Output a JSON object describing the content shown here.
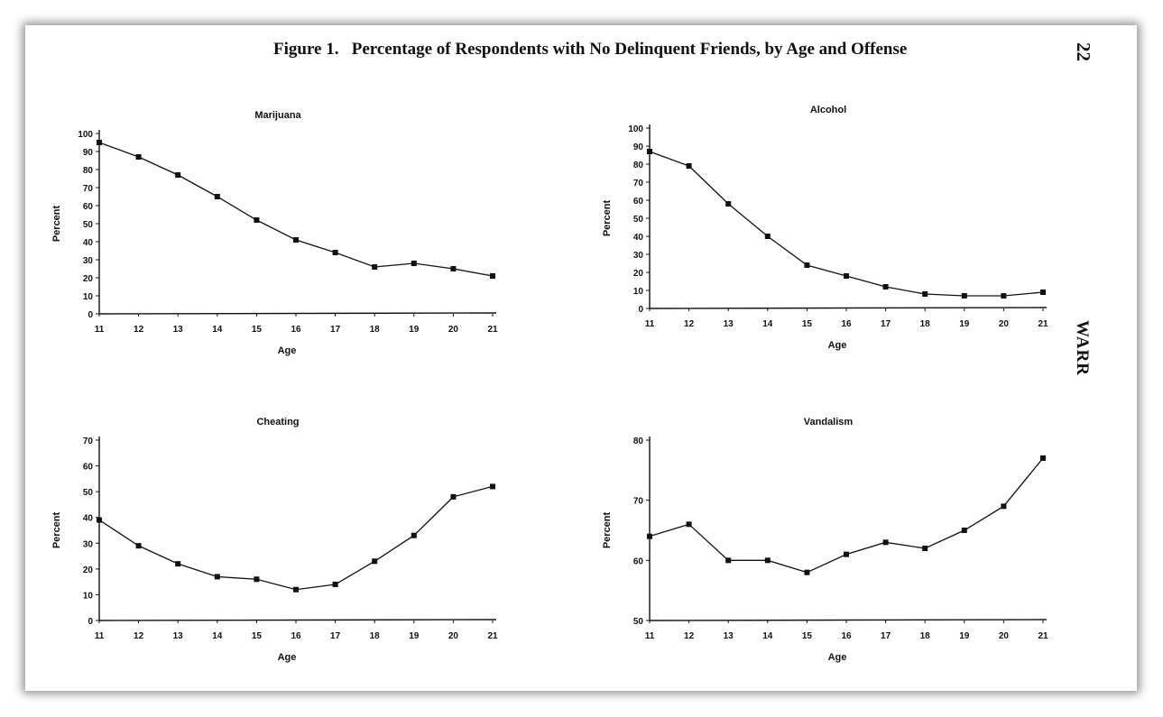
{
  "page": {
    "figure_label": "Figure 1.",
    "figure_title": "Percentage of Respondents with No Delinquent Friends, by Age and Offense",
    "page_number": "22",
    "running_head": "WARR"
  },
  "chart_data": [
    {
      "type": "line",
      "title": "Marijuana",
      "xlabel": "Age",
      "ylabel": "Percent",
      "x": [
        11,
        12,
        13,
        14,
        15,
        16,
        17,
        18,
        19,
        20,
        21
      ],
      "values": [
        95,
        87,
        77,
        65,
        52,
        41,
        34,
        26,
        28,
        25,
        21
      ],
      "ylim": [
        0,
        100
      ],
      "yticks": [
        0,
        10,
        20,
        30,
        40,
        50,
        60,
        70,
        80,
        90,
        100
      ]
    },
    {
      "type": "line",
      "title": "Alcohol",
      "xlabel": "Age",
      "ylabel": "Percent",
      "x": [
        11,
        12,
        13,
        14,
        15,
        16,
        17,
        18,
        19,
        20,
        21
      ],
      "values": [
        87,
        79,
        58,
        40,
        24,
        18,
        12,
        8,
        7,
        7,
        9
      ],
      "ylim": [
        0,
        100
      ],
      "yticks": [
        0,
        10,
        20,
        30,
        40,
        50,
        60,
        70,
        80,
        90,
        100
      ]
    },
    {
      "type": "line",
      "title": "Cheating",
      "xlabel": "Age",
      "ylabel": "Percent",
      "x": [
        11,
        12,
        13,
        14,
        15,
        16,
        17,
        18,
        19,
        20,
        21
      ],
      "values": [
        39,
        29,
        22,
        17,
        16,
        12,
        14,
        23,
        33,
        48,
        52
      ],
      "ylim": [
        0,
        70
      ],
      "yticks": [
        0,
        10,
        20,
        30,
        40,
        50,
        60,
        70
      ]
    },
    {
      "type": "line",
      "title": "Vandalism",
      "xlabel": "Age",
      "ylabel": "Percent",
      "x": [
        11,
        12,
        13,
        14,
        15,
        16,
        17,
        18,
        19,
        20,
        21
      ],
      "values": [
        64,
        66,
        60,
        60,
        58,
        61,
        63,
        62,
        65,
        69,
        77
      ],
      "ylim": [
        50,
        80
      ],
      "yticks": [
        50,
        60,
        70,
        80
      ]
    }
  ]
}
